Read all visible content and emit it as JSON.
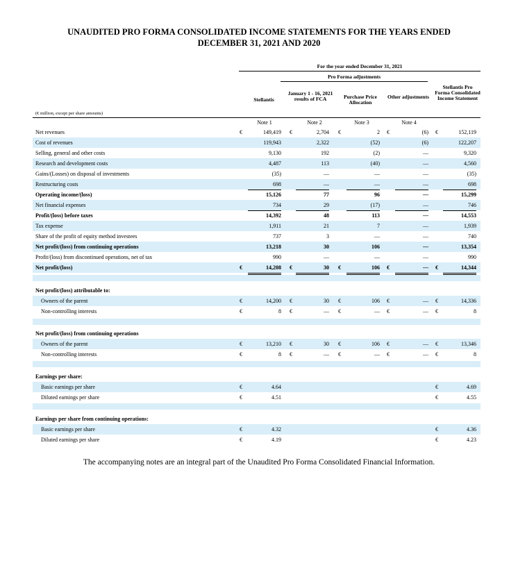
{
  "title_line1": "UNAUDITED PRO FORMA CONSOLIDATED INCOME STATEMENTS FOR THE YEARS ENDED",
  "title_line2": "DECEMBER 31, 2021 AND 2020",
  "header": {
    "period": "For the year ended December 31, 2021",
    "adjustments": "Pro Forma adjustments",
    "units": "(€ million, except per share amounts)",
    "col_stellantis": "Stellantis",
    "col_fca": "January 1 - 16, 2021 results of FCA",
    "col_ppa": "Purchase Price Allocation",
    "col_other": "Other adjustments",
    "col_proforma": "Stellantis Pro Forma Consolidated Income Statement",
    "notes": [
      "Note 1",
      "Note 2",
      "Note 3",
      "Note 4"
    ]
  },
  "currency_symbol": "€",
  "rows": [
    {
      "label": "Net revenues",
      "values": [
        "149,419",
        "2,704",
        "2",
        "(6)",
        "152,119"
      ]
    },
    {
      "label": "Cost of revenues",
      "values": [
        "119,943",
        "2,322",
        "(52)",
        "(6)",
        "122,207"
      ]
    },
    {
      "label": "Selling, general and other costs",
      "values": [
        "9,130",
        "192",
        "(2)",
        "—",
        "9,320"
      ]
    },
    {
      "label": "Research and development costs",
      "values": [
        "4,487",
        "113",
        "(40)",
        "—",
        "4,560"
      ]
    },
    {
      "label": "Gains/(Losses) on disposal of investments",
      "values": [
        "(35)",
        "—",
        "—",
        "—",
        "(35)"
      ]
    },
    {
      "label": "Restructuring costs",
      "values": [
        "698",
        "—",
        "—",
        "—",
        "698"
      ]
    },
    {
      "label": "Operating income/(loss)",
      "values": [
        "15,126",
        "77",
        "96",
        "—",
        "15,299"
      ]
    },
    {
      "label": "Net financial expenses",
      "values": [
        "734",
        "29",
        "(17)",
        "—",
        "746"
      ]
    },
    {
      "label": "Profit/(loss) before taxes",
      "values": [
        "14,392",
        "48",
        "113",
        "—",
        "14,553"
      ]
    },
    {
      "label": "Tax expense",
      "values": [
        "1,911",
        "21",
        "7",
        "—",
        "1,939"
      ]
    },
    {
      "label": "Share of the profit of equity method investees",
      "values": [
        "737",
        "3",
        "—",
        "—",
        "740"
      ]
    },
    {
      "label": "Net profit/(loss) from continuing operations",
      "values": [
        "13,218",
        "30",
        "106",
        "—",
        "13,354"
      ]
    },
    {
      "label": "Profit/(loss) from discontinued operations, net of tax",
      "values": [
        "990",
        "—",
        "—",
        "—",
        "990"
      ]
    },
    {
      "label": "Net profit/(loss)",
      "values": [
        "14,208",
        "30",
        "106",
        "—",
        "14,344"
      ]
    }
  ],
  "attrib": {
    "heading": "Net profit/(loss) attributable to:",
    "owners": {
      "label": "Owners of the parent",
      "values": [
        "14,200",
        "30",
        "106",
        "—",
        "14,336"
      ]
    },
    "nci": {
      "label": "Non-controlling interests",
      "values": [
        "8",
        "—",
        "—",
        "—",
        "8"
      ]
    }
  },
  "attrib_cont": {
    "heading": "Net profit/(loss) from continuing operations",
    "owners": {
      "label": "Owners of the parent",
      "values": [
        "13,210",
        "30",
        "106",
        "—",
        "13,346"
      ]
    },
    "nci": {
      "label": "Non-controlling interests",
      "values": [
        "8",
        "—",
        "—",
        "—",
        "8"
      ]
    }
  },
  "eps": {
    "heading": "Earnings per share:",
    "basic": {
      "label": "Basic earnings per share",
      "values": [
        "4.64",
        "4.69"
      ]
    },
    "diluted": {
      "label": "Diluted earnings per share",
      "values": [
        "4.51",
        "4.55"
      ]
    }
  },
  "eps_cont": {
    "heading": "Earnings per share from continuing operations:",
    "basic": {
      "label": "Basic earnings per share",
      "values": [
        "4.32",
        "4.36"
      ]
    },
    "diluted": {
      "label": "Diluted earnings per share",
      "values": [
        "4.19",
        "4.23"
      ]
    }
  },
  "footer": "The accompanying notes are an integral part of the Unaudited Pro Forma Consolidated Financial Information."
}
